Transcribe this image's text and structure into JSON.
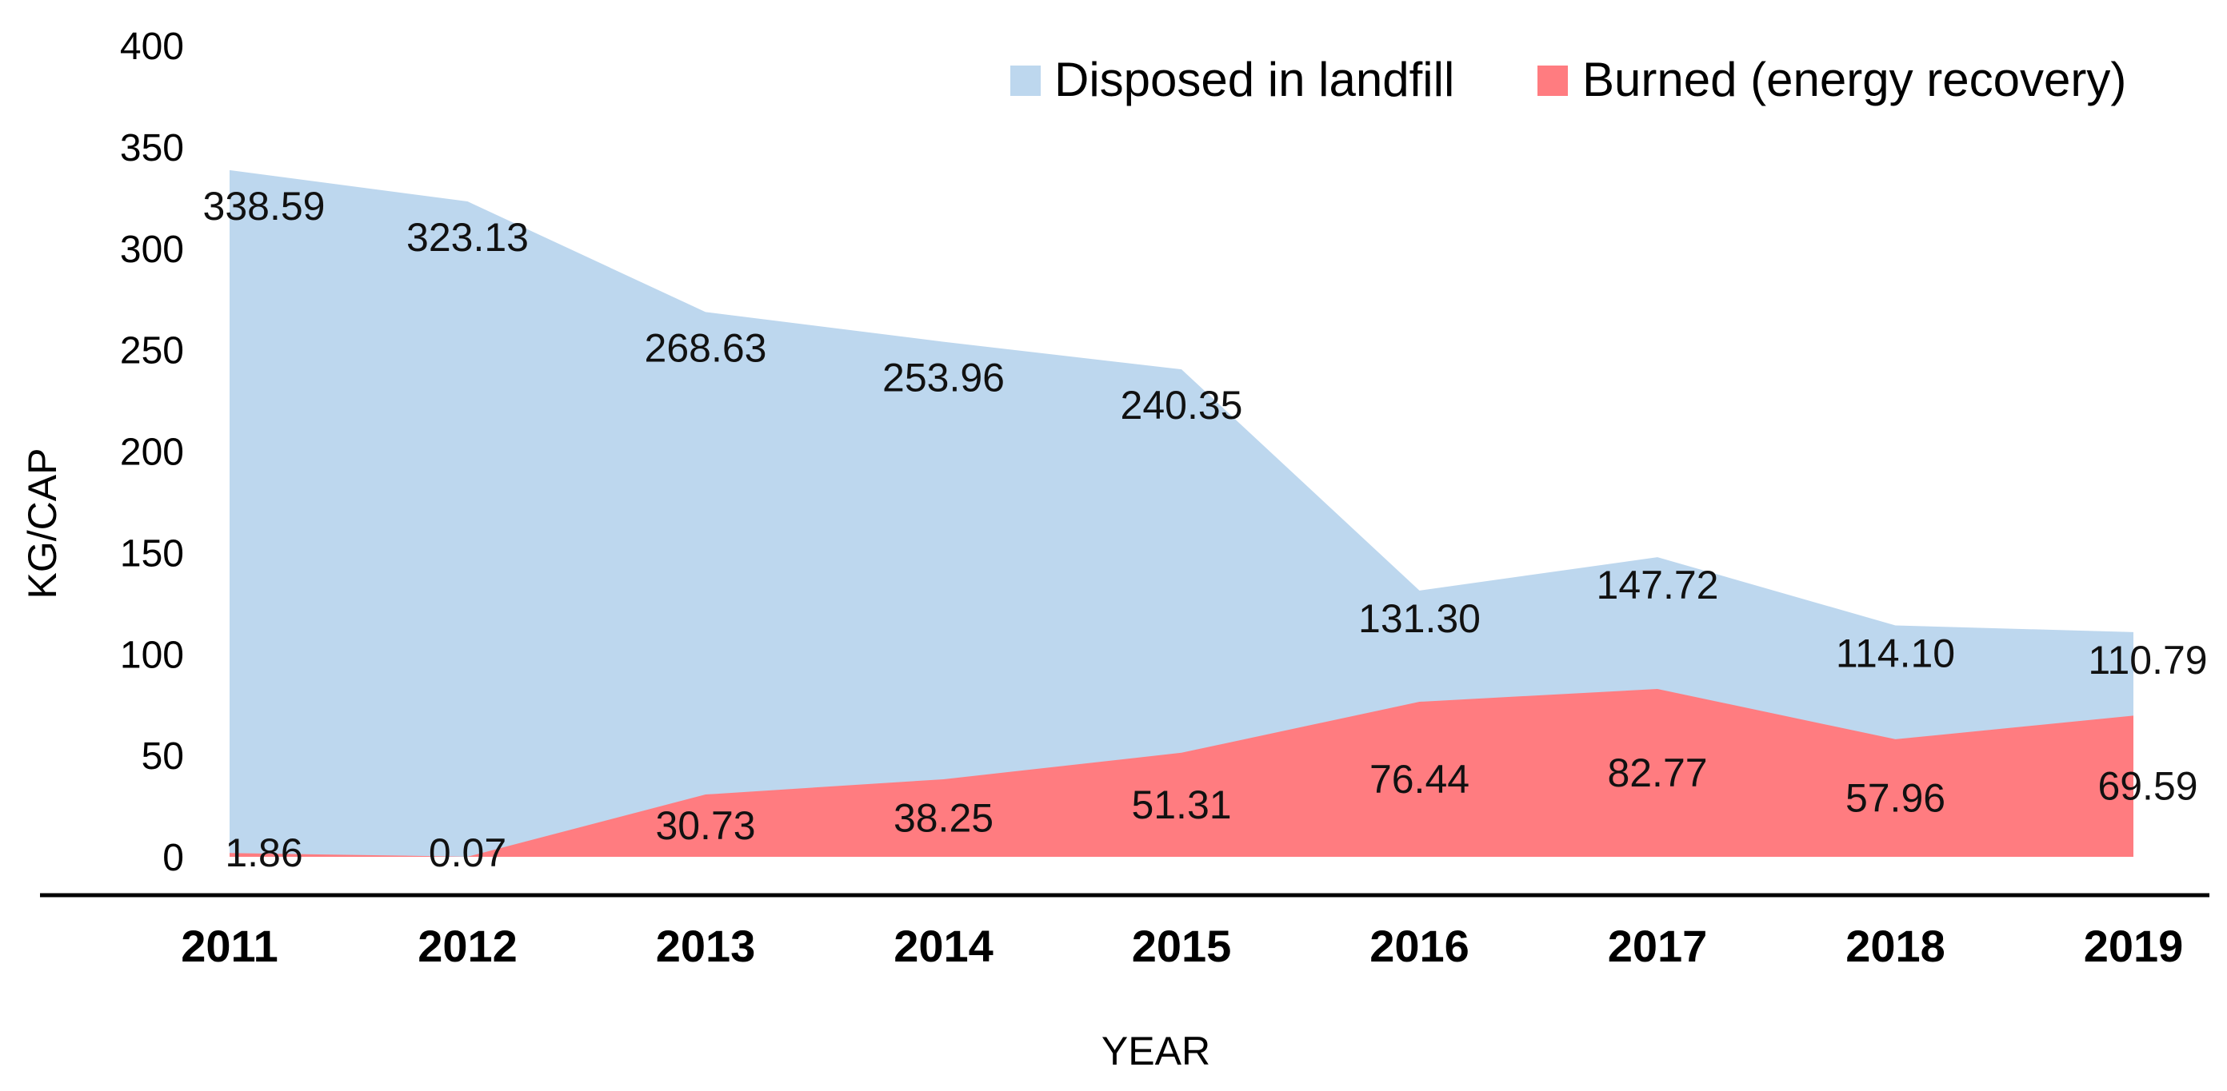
{
  "chart_data": {
    "type": "area",
    "title": "",
    "xlabel": "YEAR",
    "ylabel": "KG/CAP",
    "ylim": [
      0,
      400
    ],
    "yticks": [
      0,
      50,
      100,
      150,
      200,
      250,
      300,
      350,
      400
    ],
    "categories": [
      "2011",
      "2012",
      "2013",
      "2014",
      "2015",
      "2016",
      "2017",
      "2018",
      "2019"
    ],
    "legend_position": "top-right",
    "series": [
      {
        "name": "Disposed in landfill",
        "color": "#bdd7ee",
        "values": [
          338.59,
          323.13,
          268.63,
          253.96,
          240.35,
          131.3,
          147.72,
          114.1,
          110.79
        ],
        "labels": [
          "338.59",
          "323.13",
          "268.63",
          "253.96",
          "240.35",
          "131.30",
          "147.72",
          "114.10",
          "110.79"
        ]
      },
      {
        "name": "Burned (energy recovery)",
        "color": "#ff7c80",
        "values": [
          1.86,
          0.07,
          30.73,
          38.25,
          51.31,
          76.44,
          82.77,
          57.96,
          69.59
        ],
        "labels": [
          "1.86",
          "0.07",
          "30.73",
          "38.25",
          "51.31",
          "76.44",
          "82.77",
          "57.96",
          "69.59"
        ]
      }
    ]
  }
}
